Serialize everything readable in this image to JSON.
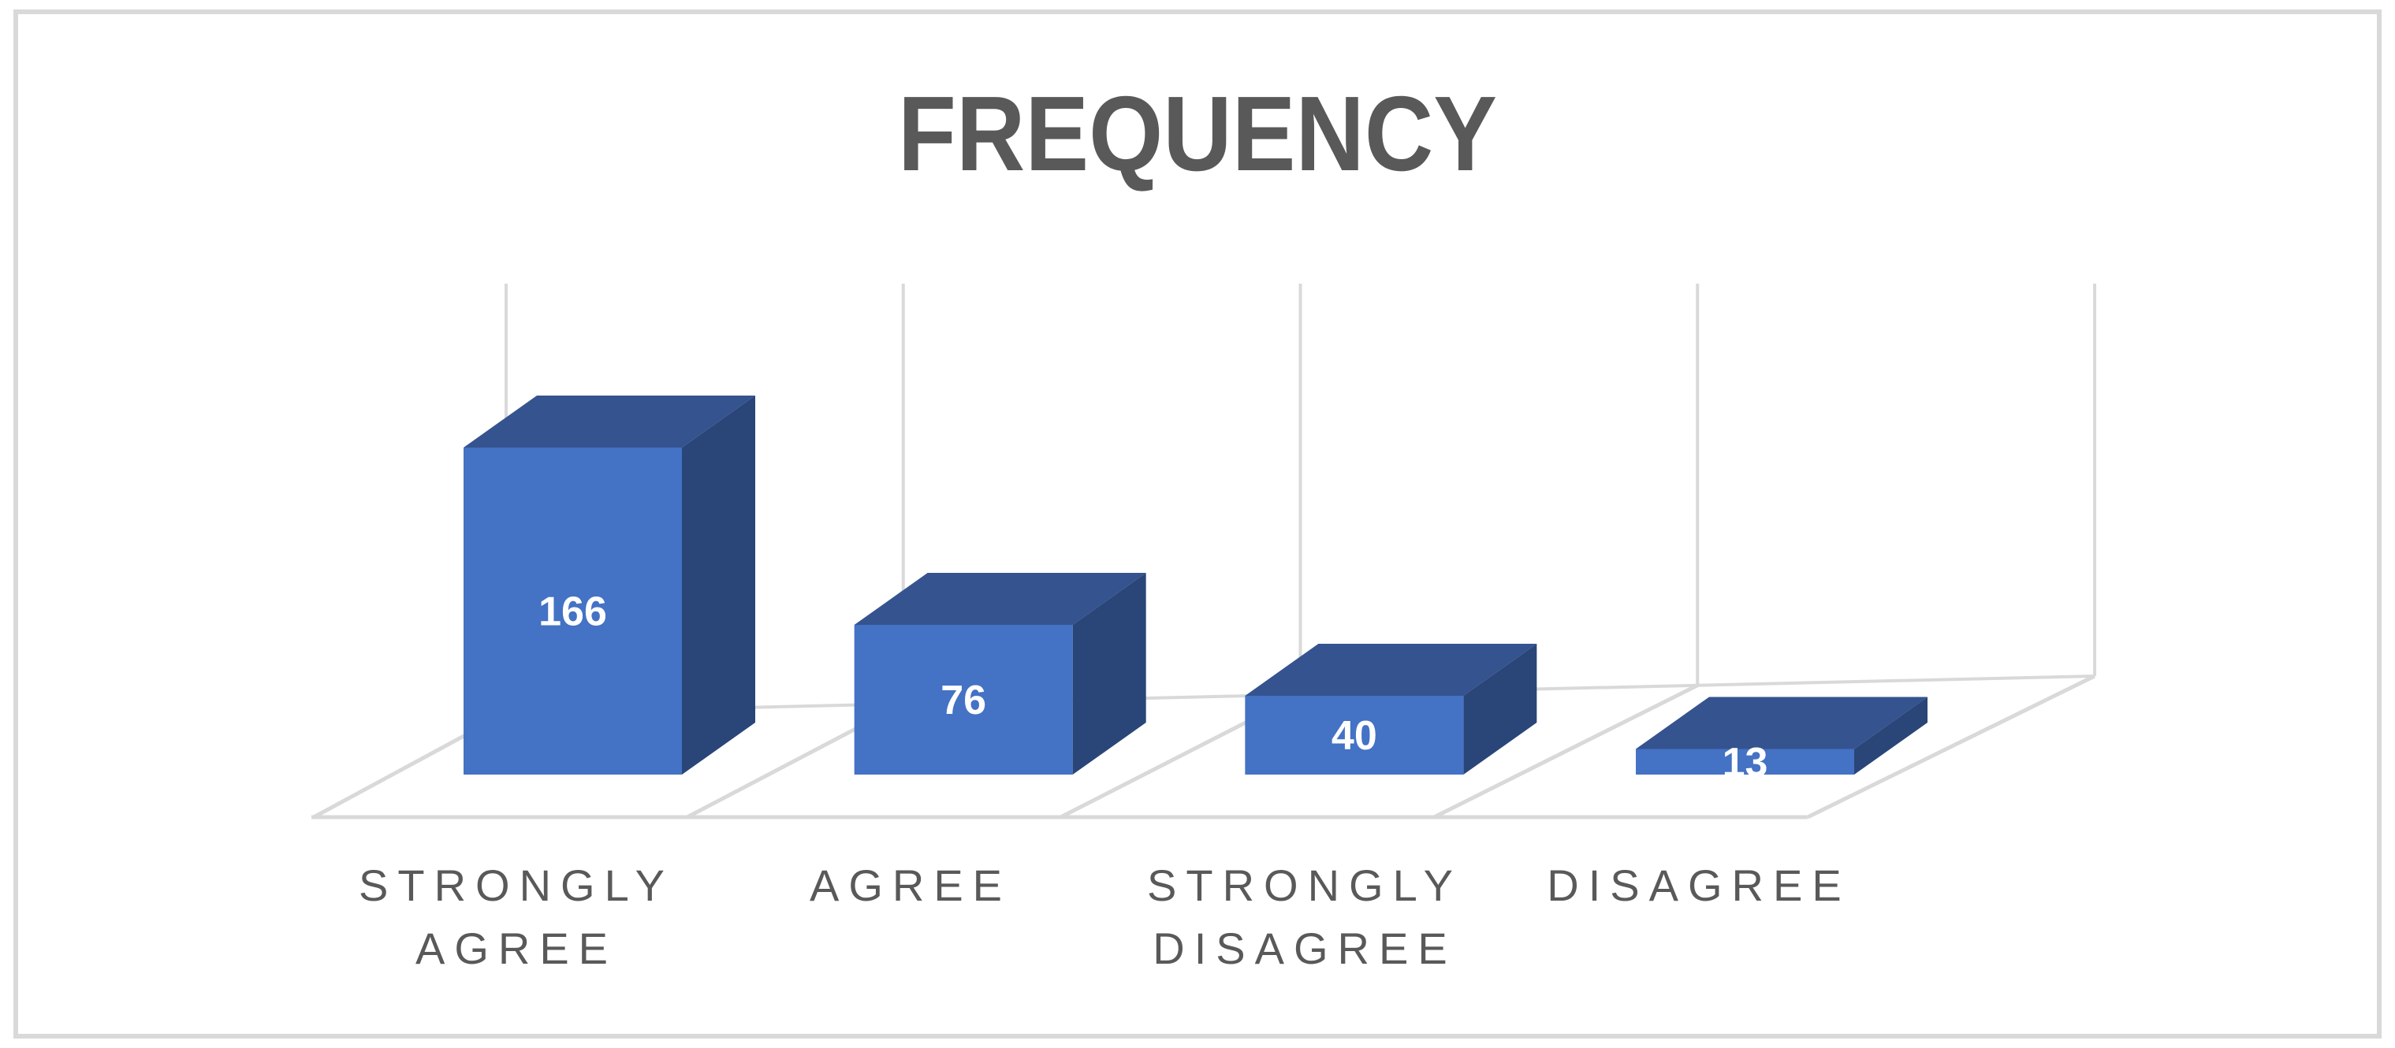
{
  "chart_data": {
    "type": "bar",
    "variant": "3d-clustered-column",
    "title": "FREQUENCY",
    "categories": [
      "STRONGLY AGREE",
      "AGREE",
      "STRONGLY DISAGREE",
      "DISAGREE"
    ],
    "values": [
      166,
      76,
      40,
      13
    ],
    "series": [
      {
        "name": "Frequency",
        "values": [
          166,
          76,
          40,
          13
        ]
      }
    ],
    "data_labels": [
      "166",
      "76",
      "40",
      "13"
    ],
    "legend": "none",
    "gridlines": "category-separator lines on back wall and floor",
    "ylim": [
      0,
      180
    ],
    "colors": {
      "bar_front": "#4472C4",
      "bar_top": "#35538F",
      "bar_side": "#2A4577",
      "data_label_text": "#FFFFFF",
      "title_text": "#595959",
      "axis_label_text": "#595959",
      "gridline": "#D9D9D9",
      "chart_border": "#D9D9D9",
      "background": "#FFFFFF"
    }
  },
  "title": {
    "text": "FREQUENCY"
  },
  "category_axis": {
    "labels": [
      "STRONGLY AGREE",
      "AGREE",
      "STRONGLY DISAGREE",
      "DISAGREE"
    ]
  }
}
